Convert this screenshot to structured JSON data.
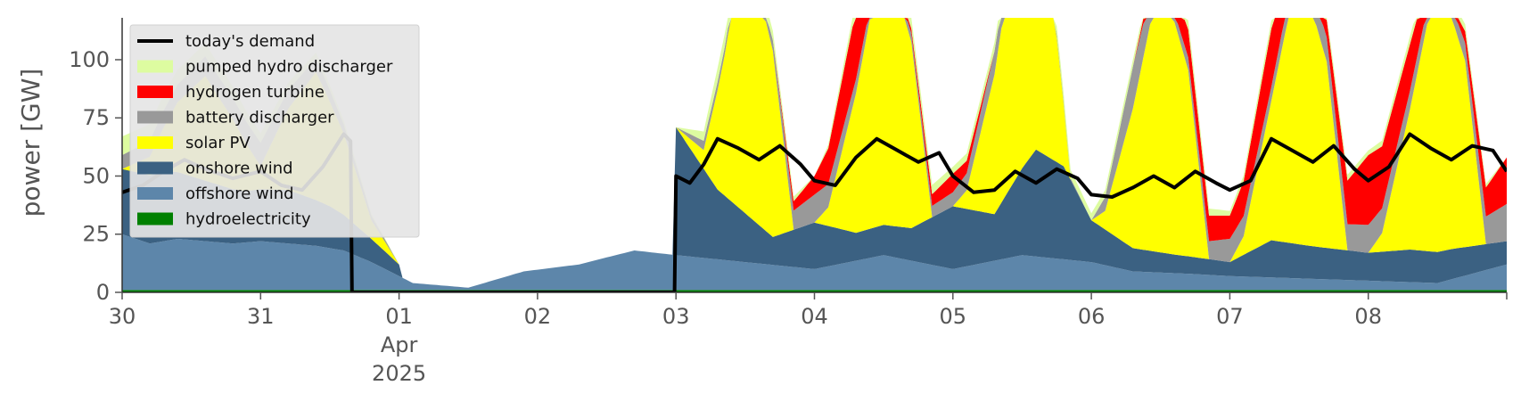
{
  "chart_data": {
    "type": "area",
    "title": "",
    "xlabel": "",
    "ylabel": "power [GW]",
    "ylim": [
      0,
      118
    ],
    "yticks": [
      0,
      25,
      50,
      75,
      100
    ],
    "xlim": [
      0,
      10
    ],
    "xticks": [
      {
        "pos": 0,
        "lines": [
          "30"
        ]
      },
      {
        "pos": 1,
        "lines": [
          "31"
        ]
      },
      {
        "pos": 2,
        "lines": [
          "01",
          "Apr",
          "2025"
        ]
      },
      {
        "pos": 3,
        "lines": [
          "02"
        ]
      },
      {
        "pos": 4,
        "lines": [
          "03"
        ]
      },
      {
        "pos": 5,
        "lines": [
          "04"
        ]
      },
      {
        "pos": 6,
        "lines": [
          "05"
        ]
      },
      {
        "pos": 7,
        "lines": [
          "06"
        ]
      },
      {
        "pos": 8,
        "lines": [
          "07"
        ]
      },
      {
        "pos": 9,
        "lines": [
          "08"
        ]
      }
    ],
    "x_unit": "days since 30 Mar 2025",
    "legend": {
      "placement": "upper-left",
      "entries": [
        {
          "label": "today's demand",
          "kind": "line",
          "color": "#000000"
        },
        {
          "label": "pumped hydro discharger",
          "kind": "patch",
          "color": "#ddfca0"
        },
        {
          "label": "hydrogen turbine",
          "kind": "patch",
          "color": "#ff0000"
        },
        {
          "label": "battery discharger",
          "kind": "patch",
          "color": "#999999"
        },
        {
          "label": "solar PV",
          "kind": "patch",
          "color": "#ffff00"
        },
        {
          "label": "onshore wind",
          "kind": "patch",
          "color": "#3b6182"
        },
        {
          "label": "offshore wind",
          "kind": "patch",
          "color": "#5d86aa"
        },
        {
          "label": "hydroelectricity",
          "kind": "patch",
          "color": "#008000"
        }
      ]
    },
    "stack_order": [
      "hydroelectricity",
      "offshore wind",
      "onshore wind",
      "solar PV",
      "battery discharger",
      "hydrogen turbine",
      "pumped hydro discharger"
    ],
    "series": [
      {
        "name": "hydroelectricity",
        "color": "#008000",
        "x": [
          0,
          10
        ],
        "values": [
          1,
          1
        ]
      },
      {
        "name": "offshore wind",
        "color": "#5d86aa",
        "x": [
          0,
          0.2,
          0.4,
          0.6,
          0.8,
          1.0,
          1.2,
          1.4,
          1.6,
          1.8,
          2.0,
          2.1,
          2.5,
          2.9,
          3.3,
          3.7,
          4.0,
          4.5,
          5.0,
          5.5,
          6.0,
          6.5,
          7.0,
          7.3,
          7.7,
          8.0,
          8.5,
          9.0,
          9.5,
          10.0
        ],
        "values": [
          24,
          20,
          22,
          21,
          20,
          21,
          20,
          19,
          17,
          12,
          6,
          3,
          1,
          8,
          11,
          17,
          15,
          12,
          9,
          15,
          9,
          15,
          12,
          8,
          7,
          6,
          5,
          4,
          3,
          11
        ]
      },
      {
        "name": "onshore wind",
        "color": "#3b6182",
        "x": [
          0,
          0.3,
          0.6,
          0.9,
          1.2,
          1.5,
          1.8,
          2.0,
          2.01,
          3.99,
          4.0,
          4.3,
          4.7,
          5.0,
          5.3,
          5.7,
          6.0,
          6.3,
          6.6,
          6.8,
          7.0,
          7.3,
          7.6,
          8.0,
          8.3,
          8.6,
          9.0,
          9.3,
          9.6,
          10.0
        ],
        "values": [
          28,
          30,
          26,
          22,
          23,
          18,
          10,
          5,
          0,
          0,
          55,
          30,
          12,
          20,
          12,
          14,
          27,
          20,
          46,
          40,
          18,
          10,
          8,
          6,
          16,
          14,
          12,
          14,
          13,
          10
        ]
      },
      {
        "name": "solar PV",
        "color": "#ffff00",
        "x": [
          0,
          0.2,
          0.4,
          0.6,
          0.8,
          1.0,
          1.2,
          1.4,
          1.6,
          1.8,
          2.0,
          2.01,
          3.99,
          4.0,
          4.2,
          4.35,
          4.5,
          4.7,
          4.85,
          5.0,
          5.1,
          5.3,
          5.5,
          5.7,
          5.85,
          6.0,
          6.1,
          6.3,
          6.5,
          6.7,
          6.85,
          7.0,
          7.1,
          7.3,
          7.5,
          7.7,
          7.85,
          8.0,
          8.1,
          8.3,
          8.5,
          8.7,
          8.85,
          9.0,
          9.1,
          9.3,
          9.5,
          9.7,
          9.85,
          10.0
        ],
        "values": [
          0,
          8,
          30,
          45,
          30,
          10,
          35,
          55,
          35,
          8,
          0,
          0,
          0,
          0,
          8,
          60,
          120,
          80,
          0,
          0,
          8,
          60,
          120,
          80,
          0,
          0,
          8,
          60,
          120,
          80,
          0,
          0,
          8,
          60,
          120,
          80,
          0,
          0,
          8,
          60,
          120,
          80,
          0,
          0,
          8,
          60,
          120,
          80,
          0,
          0
        ]
      },
      {
        "name": "battery discharger",
        "color": "#999999",
        "x": [
          0,
          1,
          2,
          4,
          4.2,
          4.6,
          5.0,
          5.3,
          5.6,
          6.0,
          6.3,
          6.6,
          7.0,
          7.3,
          7.6,
          8.0,
          8.3,
          8.6,
          9.0,
          9.3,
          9.6,
          10.0
        ],
        "values": [
          6,
          10,
          0,
          0,
          4,
          2,
          12,
          6,
          3,
          6,
          10,
          2,
          0,
          18,
          4,
          10,
          6,
          10,
          12,
          8,
          5,
          16
        ]
      },
      {
        "name": "hydrogen turbine",
        "color": "#ff0000",
        "x": [
          0,
          4,
          4.3,
          4.7,
          5.0,
          5.3,
          5.6,
          6.0,
          6.3,
          6.6,
          7.0,
          7.3,
          7.7,
          8.0,
          8.3,
          8.6,
          9.0,
          9.3,
          9.6,
          10.0
        ],
        "values": [
          0,
          0,
          0,
          0,
          8,
          30,
          0,
          8,
          0,
          0,
          0,
          0,
          12,
          10,
          25,
          0,
          30,
          20,
          0,
          20
        ]
      },
      {
        "name": "pumped hydro discharger",
        "color": "#ddfca0",
        "x": [
          0,
          1,
          2,
          4,
          4.3,
          4.7,
          5.0,
          5.4,
          5.7,
          6.0,
          6.4,
          6.7,
          7.0,
          7.4,
          7.7,
          8.0,
          8.4,
          8.7,
          9.0,
          9.4,
          9.7,
          10.0
        ],
        "values": [
          8,
          4,
          0,
          0,
          6,
          4,
          0,
          6,
          5,
          3,
          4,
          4,
          3,
          3,
          4,
          2,
          4,
          3,
          2,
          4,
          3,
          0
        ]
      }
    ],
    "demand": {
      "name": "today's demand",
      "color": "#000000",
      "x": [
        0,
        0.15,
        0.3,
        0.45,
        0.6,
        0.8,
        1.0,
        1.15,
        1.3,
        1.45,
        1.6,
        1.65,
        1.66,
        3.99,
        4.0,
        4.1,
        4.2,
        4.3,
        4.45,
        4.6,
        4.75,
        4.9,
        5.0,
        5.15,
        5.3,
        5.45,
        5.6,
        5.75,
        5.9,
        6.0,
        6.15,
        6.3,
        6.45,
        6.6,
        6.75,
        6.9,
        7.0,
        7.15,
        7.3,
        7.45,
        7.6,
        7.75,
        7.9,
        8.0,
        8.15,
        8.3,
        8.45,
        8.6,
        8.75,
        8.9,
        9.0,
        9.15,
        9.3,
        9.45,
        9.6,
        9.75,
        9.9,
        10.0
      ],
      "values": [
        43,
        46,
        52,
        57,
        53,
        49,
        52,
        46,
        44,
        54,
        68,
        65,
        0,
        0,
        50,
        47,
        55,
        66,
        62,
        57,
        63,
        55,
        48,
        46,
        58,
        66,
        61,
        56,
        60,
        50,
        43,
        44,
        52,
        47,
        53,
        49,
        42,
        41,
        45,
        50,
        45,
        52,
        47,
        44,
        48,
        66,
        61,
        56,
        63,
        53,
        48,
        54,
        68,
        62,
        57,
        63,
        61,
        52
      ]
    }
  }
}
